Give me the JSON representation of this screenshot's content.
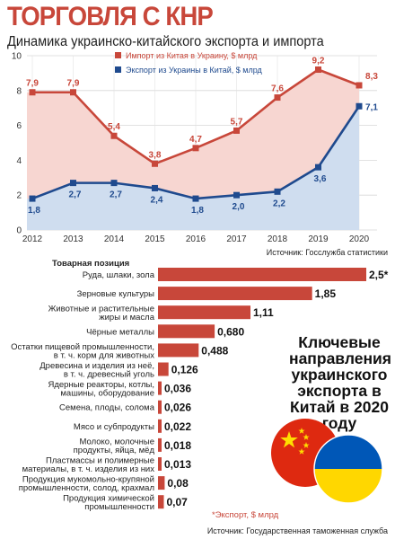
{
  "header": {
    "title": "ТОРГОВЛЯ С КНР",
    "subtitle": "Динамика украинско-китайского экспорта и импорта"
  },
  "sources": {
    "line": "Источник: Госслужба статистики",
    "bars": "Источник: Государственная таможенная служба"
  },
  "callout": "Ключевые направления украинского экспорта в Китай в 2020 году",
  "footnote": "*Экспорт, $ млрд",
  "colors": {
    "import": "#c8473a",
    "import_fill": "#f7d6d1",
    "export": "#1f4a8e",
    "export_fill": "#cfddef",
    "bar": "#c8473a"
  },
  "flags": [
    "china-flag",
    "ukraine-flag"
  ],
  "chart_data": [
    {
      "type": "line",
      "title": "Динамика украинско-китайского экспорта и импорта",
      "x": [
        "2012",
        "2013",
        "2014",
        "2015",
        "2016",
        "2017",
        "2018",
        "2019",
        "2020"
      ],
      "ylim": [
        0,
        10
      ],
      "yticks": [
        "0",
        "2",
        "4",
        "6",
        "8",
        "10"
      ],
      "grid": true,
      "legend_placement": "top-right",
      "series": [
        {
          "name": "Импорт из Китая в Украину, $ млрд",
          "values": [
            7.9,
            7.9,
            5.4,
            3.8,
            4.7,
            5.7,
            7.6,
            9.2,
            8.3
          ],
          "labels": [
            "7,9",
            "7,9",
            "5,4",
            "3,8",
            "4,7",
            "5,7",
            "7,6",
            "9,2",
            "8,3"
          ]
        },
        {
          "name": "Экспорт из Украины в Китай, $ млрд",
          "values": [
            1.8,
            2.7,
            2.7,
            2.4,
            1.8,
            2.0,
            2.2,
            3.6,
            7.1
          ],
          "labels": [
            "1,8",
            "2,7",
            "2,7",
            "2,4",
            "1,8",
            "2,0",
            "2,2",
            "3,6",
            "7,1"
          ]
        }
      ]
    },
    {
      "type": "bar",
      "orientation": "horizontal",
      "category_header": "Товарная позиция",
      "categories": [
        "Руда, шлаки, зола",
        "Зерновые культуры",
        "Животные и растительные жиры и масла",
        "Чёрные металлы",
        "Остатки пищевой промышленности, в т. ч. корм для животных",
        "Древесина и изделия из неё, в т. ч. древесный уголь",
        "Ядерные реакторы, котлы, машины, оборудование",
        "Семена, плоды, солома",
        "Мясо и субпродукты",
        "Молоко, молочные продукты, яйца, мёд",
        "Пластмассы и полимерные материалы, в т. ч. изделия из них",
        "Продукция мукомольно-крупяной промышленности, солод, крахмал",
        "Продукция химической промышленности"
      ],
      "values": [
        2.5,
        1.85,
        1.11,
        0.68,
        0.488,
        0.126,
        0.036,
        0.026,
        0.022,
        0.018,
        0.013,
        0.08,
        0.07
      ],
      "labels": [
        "2,5*",
        "1,85",
        "1,11",
        "0,680",
        "0,488",
        "0,126",
        "0,036",
        "0,026",
        "0,022",
        "0,018",
        "0,013",
        "0,08",
        "0,07"
      ]
    }
  ]
}
